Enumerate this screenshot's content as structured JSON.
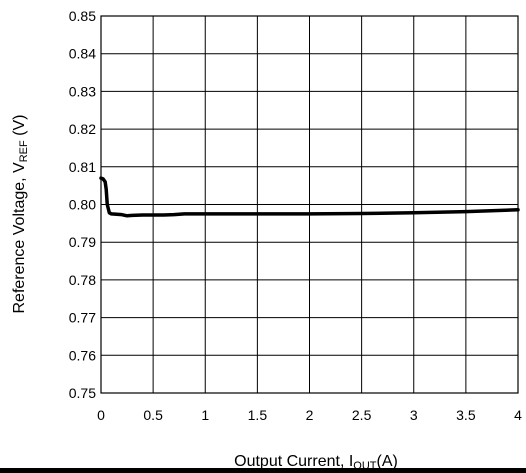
{
  "chart_data": {
    "type": "line",
    "title": "",
    "xlabel": {
      "main": "Output Current, I",
      "sub": "OUT",
      "suffix": "(A)"
    },
    "ylabel": {
      "main": "Reference Voltage, V",
      "sub": "REF",
      "suffix": " (V)"
    },
    "xlim": [
      0,
      4
    ],
    "ylim": [
      0.75,
      0.85
    ],
    "x_ticks": [
      "0",
      "0.5",
      "1",
      "1.5",
      "2",
      "2.5",
      "3",
      "3.5",
      "4"
    ],
    "y_ticks": [
      "0.85",
      "0.84",
      "0.83",
      "0.82",
      "0.81",
      "0.80",
      "0.79",
      "0.78",
      "0.77",
      "0.76",
      "0.75"
    ],
    "grid": true,
    "legend": "none",
    "series": [
      {
        "x": [
          0.0,
          0.02,
          0.04,
          0.05,
          0.06,
          0.08,
          0.1,
          0.15,
          0.2,
          0.25,
          0.3,
          0.4,
          0.5,
          0.6,
          0.7,
          0.75,
          0.8,
          1.0,
          1.5,
          2.0,
          2.5,
          3.0,
          3.5,
          4.0
        ],
        "y": [
          0.807,
          0.8068,
          0.806,
          0.804,
          0.8,
          0.7978,
          0.7975,
          0.7974,
          0.7973,
          0.797,
          0.7971,
          0.7972,
          0.7972,
          0.7972,
          0.7973,
          0.7974,
          0.7975,
          0.7975,
          0.7975,
          0.7975,
          0.7976,
          0.7978,
          0.7981,
          0.7986
        ]
      }
    ]
  }
}
